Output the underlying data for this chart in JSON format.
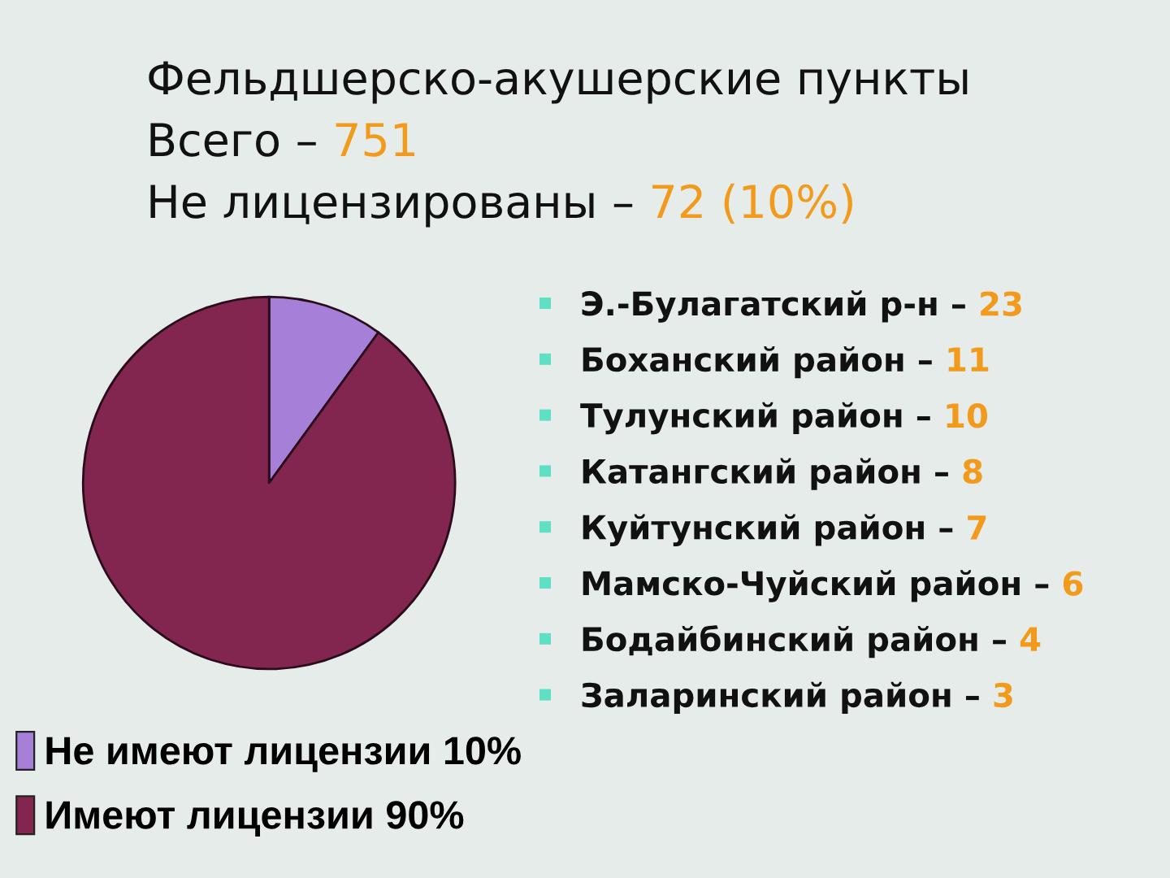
{
  "chart_data": {
    "type": "pie",
    "title": "Фельдшерско-акушерские пункты",
    "subtitle": "Всего – 751\nНе лицензированы – 72 (10%)",
    "categories": [
      "Не имеют лицензии 10%",
      "Имеют лицензии 90%"
    ],
    "values": [
      10,
      90
    ],
    "colors": [
      "#a67fd8",
      "#82264f"
    ],
    "legend": "bottom",
    "annotations": [
      "Э.-Булагатский р-н – 23",
      "Боханский район – 11",
      "Тулунский район – 10",
      "Катангский район – 8",
      "Куйтунский район – 7",
      "Мамско-Чуйский район – 6",
      "Бодайбинский район – 4",
      "Заларинский район – 3"
    ]
  }
}
